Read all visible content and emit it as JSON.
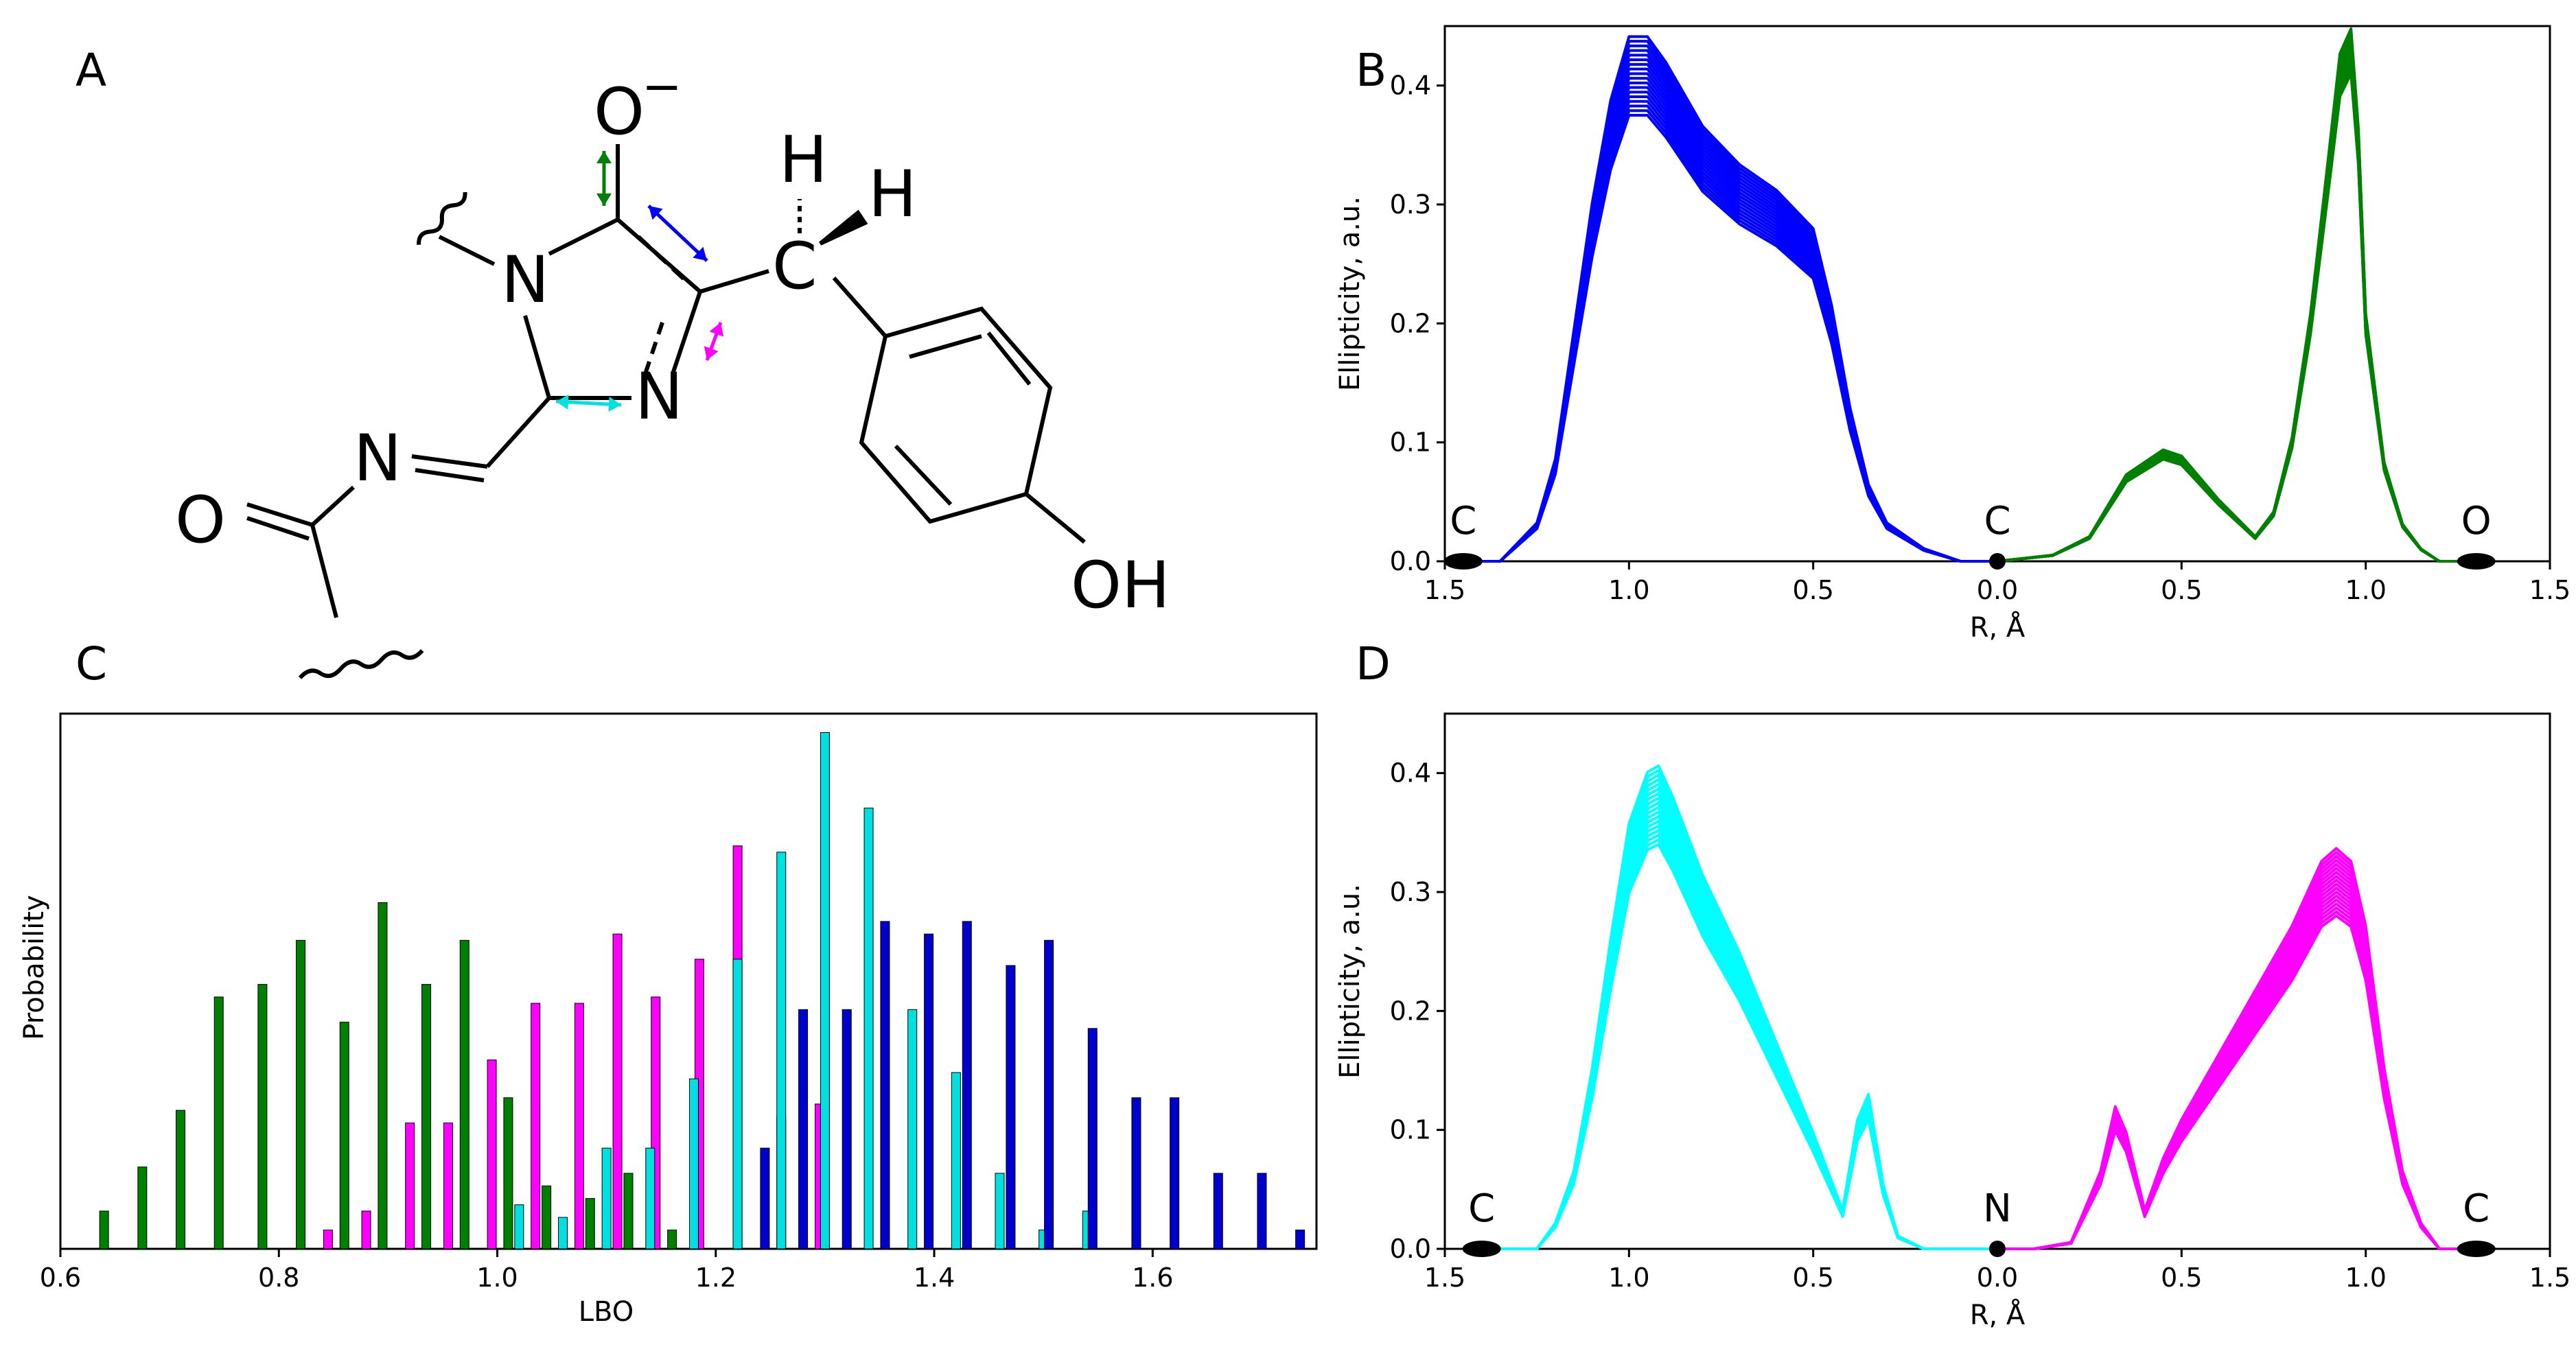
{
  "panels": {
    "A": "A",
    "B": "B",
    "C": "C",
    "D": "D"
  },
  "structure": {
    "labels": [
      "O",
      "−",
      "H",
      "H",
      "N",
      "N",
      "N",
      "O",
      "OH",
      "C"
    ],
    "arrow_colors": {
      "co": "#008000",
      "cc": "#0000ff",
      "cn1": "#ff00ff",
      "cn2": "#00e0e0"
    }
  },
  "chart_data": [
    {
      "id": "B",
      "type": "line",
      "ylabel": "Ellipticity, a.u.",
      "xlabel": "R, Å",
      "xlim": [
        -1.5,
        1.5
      ],
      "ylim": [
        0,
        0.45
      ],
      "x_ticks": [
        "1.5",
        "1.0",
        "0.5",
        "0.0",
        "0.5",
        "1.0",
        "1.5"
      ],
      "y_ticks": [
        "0.0",
        "0.1",
        "0.2",
        "0.3",
        "0.4"
      ],
      "atoms": [
        {
          "label": "C",
          "x": -1.45
        },
        {
          "label": "C",
          "x": 0.0
        },
        {
          "label": "O",
          "x": 1.3
        }
      ],
      "series": [
        {
          "color": "#0000ff",
          "x": [
            -1.5,
            -1.35,
            -1.25,
            -1.2,
            -1.15,
            -1.1,
            -1.05,
            -1.0,
            -0.95,
            -0.9,
            -0.8,
            -0.7,
            -0.6,
            -0.5,
            -0.45,
            -0.4,
            -0.35,
            -0.3,
            -0.2,
            -0.1,
            0.0
          ],
          "y": [
            0.0,
            0.0,
            0.03,
            0.08,
            0.18,
            0.28,
            0.36,
            0.41,
            0.41,
            0.39,
            0.34,
            0.31,
            0.29,
            0.26,
            0.2,
            0.12,
            0.06,
            0.03,
            0.01,
            0.0,
            0.0
          ],
          "spread": 0.035
        },
        {
          "color": "#008000",
          "x": [
            0.0,
            0.15,
            0.25,
            0.35,
            0.45,
            0.5,
            0.6,
            0.7,
            0.75,
            0.8,
            0.85,
            0.9,
            0.93,
            0.96,
            0.98,
            1.0,
            1.05,
            1.1,
            1.15,
            1.2,
            1.3
          ],
          "y": [
            0.0,
            0.005,
            0.02,
            0.07,
            0.09,
            0.085,
            0.05,
            0.02,
            0.04,
            0.1,
            0.2,
            0.33,
            0.41,
            0.43,
            0.35,
            0.2,
            0.08,
            0.03,
            0.01,
            0.0,
            0.0
          ],
          "spread": 0.02
        }
      ]
    },
    {
      "id": "C",
      "type": "bar",
      "ylabel": "Probability",
      "xlabel": "LBO",
      "xlim": [
        0.6,
        1.75
      ],
      "x_ticks": [
        "0.6",
        "0.8",
        "1.0",
        "1.2",
        "1.4",
        "1.6"
      ],
      "series": [
        {
          "color": "#008000",
          "x": [
            0.64,
            0.675,
            0.71,
            0.745,
            0.785,
            0.82,
            0.86,
            0.895,
            0.935,
            0.97,
            1.01,
            1.045,
            1.085,
            1.12,
            1.16
          ],
          "y": [
            0.06,
            0.13,
            0.22,
            0.4,
            0.42,
            0.49,
            0.36,
            0.55,
            0.42,
            0.49,
            0.24,
            0.1,
            0.08,
            0.12,
            0.03
          ]
        },
        {
          "color": "#ff00ff",
          "x": [
            0.845,
            0.88,
            0.92,
            0.955,
            0.995,
            1.035,
            1.075,
            1.11,
            1.145,
            1.185,
            1.22,
            1.26,
            1.295
          ],
          "y": [
            0.03,
            0.06,
            0.2,
            0.2,
            0.3,
            0.39,
            0.39,
            0.5,
            0.4,
            0.46,
            0.64,
            0.21,
            0.23
          ]
        },
        {
          "color": "#00e0e0",
          "x": [
            1.02,
            1.06,
            1.1,
            1.14,
            1.18,
            1.22,
            1.26,
            1.3,
            1.34,
            1.38,
            1.42,
            1.46,
            1.5,
            1.54
          ],
          "y": [
            0.07,
            0.05,
            0.16,
            0.16,
            0.27,
            0.46,
            0.63,
            0.82,
            0.7,
            0.38,
            0.28,
            0.12,
            0.03,
            0.06
          ]
        },
        {
          "color": "#0000cc",
          "x": [
            1.245,
            1.28,
            1.32,
            1.355,
            1.395,
            1.43,
            1.47,
            1.505,
            1.545,
            1.585,
            1.62,
            1.66,
            1.7,
            1.735
          ],
          "y": [
            0.16,
            0.38,
            0.38,
            0.52,
            0.5,
            0.52,
            0.45,
            0.49,
            0.35,
            0.24,
            0.24,
            0.12,
            0.12,
            0.03
          ]
        }
      ]
    },
    {
      "id": "D",
      "type": "line",
      "ylabel": "Ellipticity, a.u.",
      "xlabel": "R, Å",
      "xlim": [
        -1.5,
        1.5
      ],
      "ylim": [
        0,
        0.45
      ],
      "x_ticks": [
        "1.5",
        "1.0",
        "0.5",
        "0.0",
        "0.5",
        "1.0",
        "1.5"
      ],
      "y_ticks": [
        "0.0",
        "0.1",
        "0.2",
        "0.3",
        "0.4"
      ],
      "atoms": [
        {
          "label": "C",
          "x": -1.4
        },
        {
          "label": "N",
          "x": 0.0
        },
        {
          "label": "C",
          "x": 1.3
        }
      ],
      "series": [
        {
          "color": "#00ffff",
          "x": [
            -1.4,
            -1.25,
            -1.2,
            -1.15,
            -1.1,
            -1.05,
            -1.0,
            -0.95,
            -0.92,
            -0.88,
            -0.8,
            -0.7,
            -0.6,
            -0.5,
            -0.42,
            -0.38,
            -0.35,
            -0.31,
            -0.27,
            -0.2,
            -0.1,
            0.0
          ],
          "y": [
            0.0,
            0.0,
            0.02,
            0.06,
            0.14,
            0.24,
            0.33,
            0.37,
            0.375,
            0.35,
            0.29,
            0.23,
            0.16,
            0.09,
            0.03,
            0.1,
            0.12,
            0.05,
            0.01,
            0.0,
            0.0,
            0.0
          ],
          "spread": 0.035
        },
        {
          "color": "#ff00ff",
          "x": [
            0.0,
            0.1,
            0.2,
            0.28,
            0.32,
            0.35,
            0.4,
            0.45,
            0.5,
            0.6,
            0.7,
            0.8,
            0.88,
            0.92,
            0.96,
            1.0,
            1.05,
            1.1,
            1.15,
            1.2,
            1.3
          ],
          "y": [
            0.0,
            0.0,
            0.005,
            0.06,
            0.11,
            0.09,
            0.03,
            0.07,
            0.1,
            0.15,
            0.2,
            0.25,
            0.3,
            0.31,
            0.3,
            0.25,
            0.14,
            0.06,
            0.02,
            0.0,
            0.0
          ],
          "spread": 0.03
        }
      ]
    }
  ]
}
